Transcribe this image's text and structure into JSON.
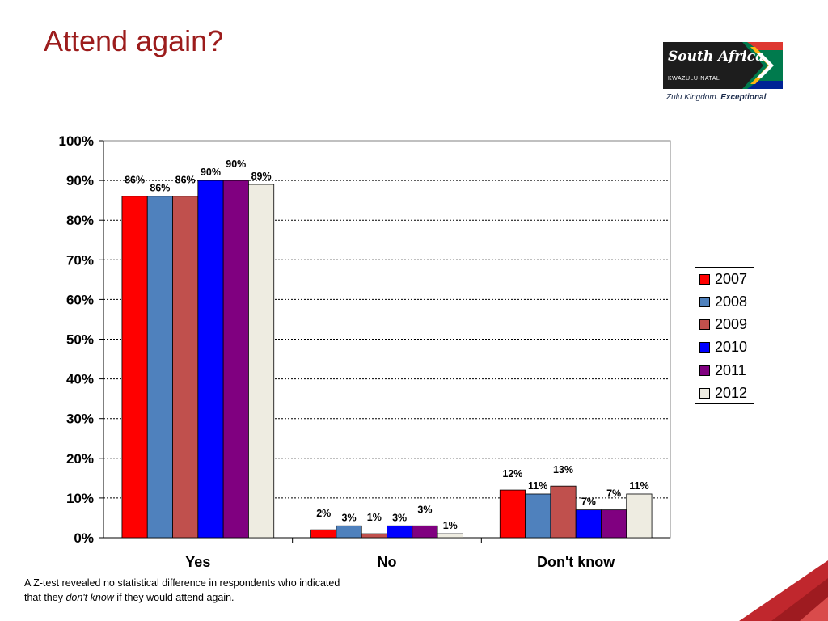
{
  "title": "Attend again?",
  "logo": {
    "name": "South Africa",
    "region": "KWAZULU-NATAL",
    "tagline_plain": "Zulu Kingdom. ",
    "tagline_bold": "Exceptional"
  },
  "footnote": {
    "before": "A Z-test revealed no statistical difference in respondents who indicated that they ",
    "italic": "don't know",
    "after": " if they would attend again."
  },
  "chart_data": {
    "type": "bar",
    "categories": [
      "Yes",
      "No",
      "Don't know"
    ],
    "series": [
      {
        "name": "2007",
        "color": "#ff0000",
        "values": [
          86,
          2,
          12
        ]
      },
      {
        "name": "2008",
        "color": "#4f81bd",
        "values": [
          86,
          3,
          11
        ]
      },
      {
        "name": "2009",
        "color": "#c0504d",
        "values": [
          86,
          1,
          13
        ]
      },
      {
        "name": "2010",
        "color": "#0000ff",
        "values": [
          90,
          3,
          7
        ]
      },
      {
        "name": "2011",
        "color": "#800080",
        "values": [
          90,
          3,
          7
        ]
      },
      {
        "name": "2012",
        "color": "#eeece1",
        "values": [
          89,
          1,
          11
        ]
      }
    ],
    "ylim": [
      0,
      100
    ],
    "yticks": [
      "0%",
      "10%",
      "20%",
      "30%",
      "40%",
      "50%",
      "60%",
      "70%",
      "80%",
      "90%",
      "100%"
    ],
    "grid": true,
    "legend_position": "right",
    "value_suffix": "%"
  }
}
